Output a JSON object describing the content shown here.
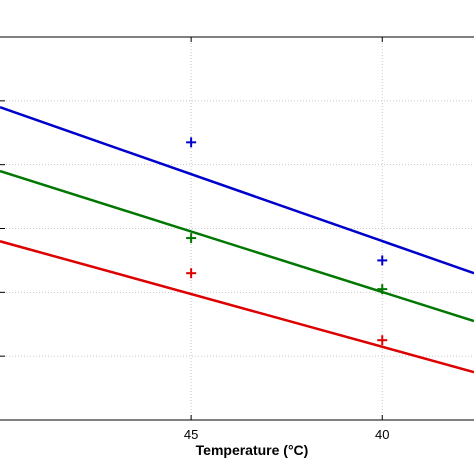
{
  "chart_data": {
    "type": "line",
    "title": "",
    "xlabel": "Temperature (°C)",
    "ylabel": "",
    "x_axis_reversed": true,
    "xlim": [
      50,
      37.6
    ],
    "ylim": [
      0,
      6
    ],
    "xticks": [
      45,
      40
    ],
    "grid": true,
    "colors": {
      "blue": "#0000cc",
      "green": "#007700",
      "red": "#dd0000",
      "grid": "#c8c8c8",
      "axis": "#000000"
    },
    "series": [
      {
        "color": "#0000cc",
        "line_x": [
          50,
          37.6
        ],
        "line_y": [
          4.9,
          2.3
        ],
        "marker": "+",
        "points_x": [
          45,
          40
        ],
        "points_y": [
          4.35,
          2.5
        ]
      },
      {
        "color": "#007700",
        "line_x": [
          50,
          37.6
        ],
        "line_y": [
          3.9,
          1.55
        ],
        "marker": "+",
        "points_x": [
          45,
          40
        ],
        "points_y": [
          2.85,
          2.05
        ]
      },
      {
        "color": "#dd0000",
        "line_x": [
          50,
          37.6
        ],
        "line_y": [
          2.8,
          0.75
        ],
        "marker": "+",
        "points_x": [
          45,
          40
        ],
        "points_y": [
          2.3,
          1.25
        ]
      }
    ]
  }
}
